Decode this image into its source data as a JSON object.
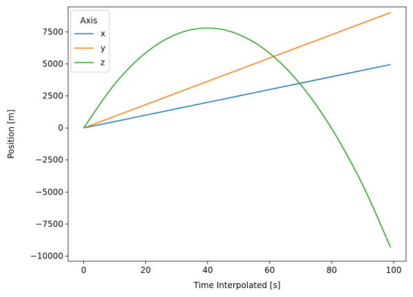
{
  "chart_data": {
    "type": "line",
    "xlabel": "Time Interpolated [s]",
    "ylabel": "Position [m]",
    "xlim": [
      -5,
      104
    ],
    "ylim": [
      -10400,
      9450
    ],
    "xticks": [
      0,
      20,
      40,
      60,
      80,
      100
    ],
    "yticks": [
      -10000,
      -7500,
      -5000,
      -2500,
      0,
      2500,
      5000,
      7500
    ],
    "ytick_labels": [
      "−10000",
      "−7500",
      "−5000",
      "−2500",
      "0",
      "2500",
      "5000",
      "7500"
    ],
    "grid": false,
    "legend": {
      "title": "Axis",
      "placement": "top-left"
    },
    "x": [
      0,
      10,
      20,
      30,
      40,
      50,
      60,
      70,
      80,
      90,
      99
    ],
    "series": [
      {
        "name": "x",
        "color": "#1f77b4",
        "values": [
          0,
          500,
          1000,
          1500,
          2000,
          2500,
          3000,
          3500,
          4000,
          4500,
          4950
        ]
      },
      {
        "name": "y",
        "color": "#ff7f0e",
        "values": [
          0,
          910,
          1820,
          2730,
          3640,
          4550,
          5460,
          6370,
          7280,
          8190,
          9010
        ]
      },
      {
        "name": "z",
        "color": "#2ca02c",
        "values": [
          0,
          3420,
          5860,
          7320,
          7800,
          7300,
          5830,
          3380,
          -50,
          -4450,
          -9330
        ]
      }
    ]
  }
}
